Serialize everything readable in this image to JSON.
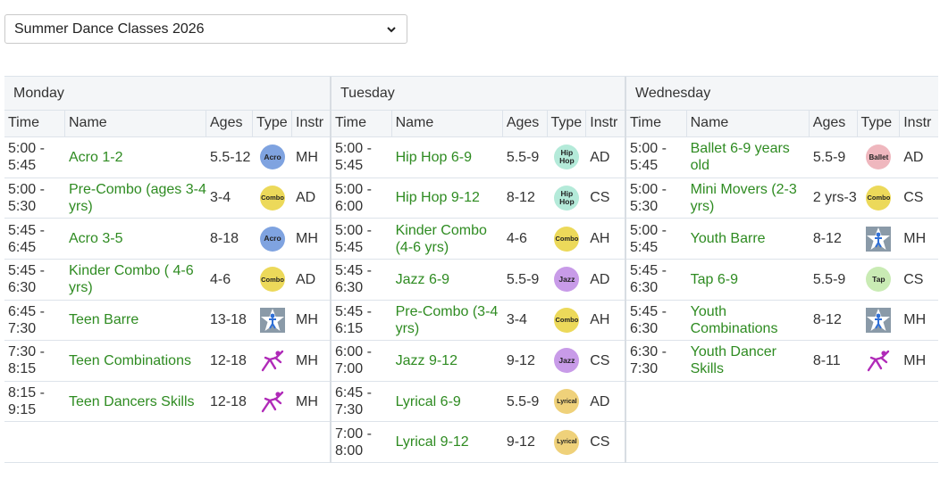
{
  "season_select": {
    "value": "Summer Dance Classes 2026"
  },
  "columns": {
    "time": "Time",
    "name": "Name",
    "ages": "Ages",
    "type": "Type",
    "instr": "Instr"
  },
  "days": [
    {
      "label": "Monday",
      "classes": [
        {
          "time": "5:00 - 5:45",
          "name": "Acro 1-2",
          "ages": "5.5-12",
          "type": "acro",
          "type_label": "Acro",
          "instr": "MH"
        },
        {
          "time": "5:00 - 5:30",
          "name": "Pre-Combo (ages 3-4 yrs)",
          "ages": "3-4",
          "type": "combo",
          "type_label": "Combo",
          "instr": "AD"
        },
        {
          "time": "5:45 - 6:45",
          "name": "Acro 3-5",
          "ages": "8-18",
          "type": "acro",
          "type_label": "Acro",
          "instr": "MH"
        },
        {
          "time": "5:45 - 6:30",
          "name": "Kinder Combo ( 4-6 yrs)",
          "ages": "4-6",
          "type": "combo",
          "type_label": "Combo",
          "instr": "AD"
        },
        {
          "time": "6:45 - 7:30",
          "name": "Teen Barre",
          "ages": "13-18",
          "type": "star",
          "type_label": "",
          "instr": "MH"
        },
        {
          "time": "7:30 - 8:15",
          "name": "Teen Combinations",
          "ages": "12-18",
          "type": "dancer",
          "type_label": "",
          "instr": "MH"
        },
        {
          "time": "8:15 - 9:15",
          "name": "Teen Dancers Skills",
          "ages": "12-18",
          "type": "dancer",
          "type_label": "",
          "instr": "MH"
        }
      ]
    },
    {
      "label": "Tuesday",
      "classes": [
        {
          "time": "5:00 - 5:45",
          "name": "Hip Hop 6-9",
          "ages": "5.5-9",
          "type": "hiphop",
          "type_label": "Hip Hop",
          "instr": "AD"
        },
        {
          "time": "5:00 - 6:00",
          "name": "Hip Hop 9-12",
          "ages": "8-12",
          "type": "hiphop",
          "type_label": "Hip Hop",
          "instr": "CS"
        },
        {
          "time": "5:00 - 5:45",
          "name": "Kinder Combo (4-6 yrs)",
          "ages": "4-6",
          "type": "combo",
          "type_label": "Combo",
          "instr": "AH"
        },
        {
          "time": "5:45 - 6:30",
          "name": "Jazz 6-9",
          "ages": "5.5-9",
          "type": "jazz",
          "type_label": "Jazz",
          "instr": "AD"
        },
        {
          "time": "5:45 - 6:15",
          "name": "Pre-Combo (3-4 yrs)",
          "ages": "3-4",
          "type": "combo",
          "type_label": "Combo",
          "instr": "AH"
        },
        {
          "time": "6:00 - 7:00",
          "name": "Jazz 9-12",
          "ages": "9-12",
          "type": "jazz",
          "type_label": "Jazz",
          "instr": "CS"
        },
        {
          "time": "6:45 - 7:30",
          "name": "Lyrical 6-9",
          "ages": "5.5-9",
          "type": "lyrical",
          "type_label": "Lyrical",
          "instr": "AD"
        },
        {
          "time": "7:00 - 8:00",
          "name": "Lyrical 9-12",
          "ages": "9-12",
          "type": "lyrical",
          "type_label": "Lyrical",
          "instr": "CS"
        }
      ]
    },
    {
      "label": "Wednesday",
      "classes": [
        {
          "time": "5:00 - 5:45",
          "name": "Ballet 6-9 years old",
          "ages": "5.5-9",
          "type": "ballet",
          "type_label": "Ballet",
          "instr": "AD"
        },
        {
          "time": "5:00 - 5:30",
          "name": "Mini Movers (2-3 yrs)",
          "ages": "2 yrs-3",
          "type": "combo",
          "type_label": "Combo",
          "instr": "CS"
        },
        {
          "time": "5:00 - 5:45",
          "name": "Youth Barre",
          "ages": "8-12",
          "type": "star",
          "type_label": "",
          "instr": "MH"
        },
        {
          "time": "5:45 - 6:30",
          "name": "Tap 6-9",
          "ages": "5.5-9",
          "type": "tap",
          "type_label": "Tap",
          "instr": "CS"
        },
        {
          "time": "5:45 - 6:30",
          "name": "Youth Combinations",
          "ages": "8-12",
          "type": "star",
          "type_label": "",
          "instr": "MH"
        },
        {
          "time": "6:30 - 7:30",
          "name": "Youth Dancer Skills",
          "ages": "8-11",
          "type": "dancer",
          "type_label": "",
          "instr": "MH"
        }
      ]
    }
  ],
  "colors": {
    "class_link": "#2e8b21",
    "header_bg": "#f4f6f8",
    "grid_line": "#dde3ea"
  }
}
